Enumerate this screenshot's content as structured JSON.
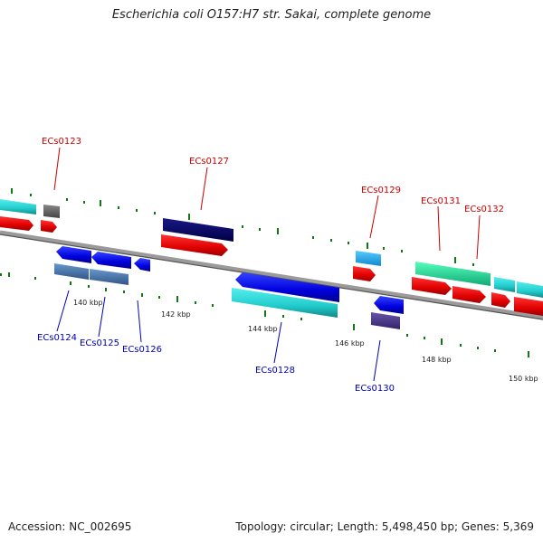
{
  "title": "Escherichia coli O157:H7 str. Sakai, complete genome",
  "footer": {
    "accession": "Accession: NC_002695",
    "summary": "Topology: circular; Length: 5,498,450 bp; Genes: 5,369"
  },
  "ruler_labels": [
    "140 kbp",
    "142 kbp",
    "144 kbp",
    "146 kbp",
    "148 kbp",
    "150 kbp"
  ],
  "gene_labels_forward": [
    "ECs0123",
    "ECs0127",
    "ECs0129",
    "ECs0131",
    "ECs0132"
  ],
  "gene_labels_reverse": [
    "ECs0124",
    "ECs0125",
    "ECs0126",
    "ECs0128",
    "ECs0130"
  ],
  "colors": {
    "forward_label": "#cc0000",
    "reverse_label": "#0000bb",
    "backbone": "#888888",
    "tick": "#117711",
    "cds_forward": "#ff0000",
    "cds_reverse": "#0000ff"
  }
}
